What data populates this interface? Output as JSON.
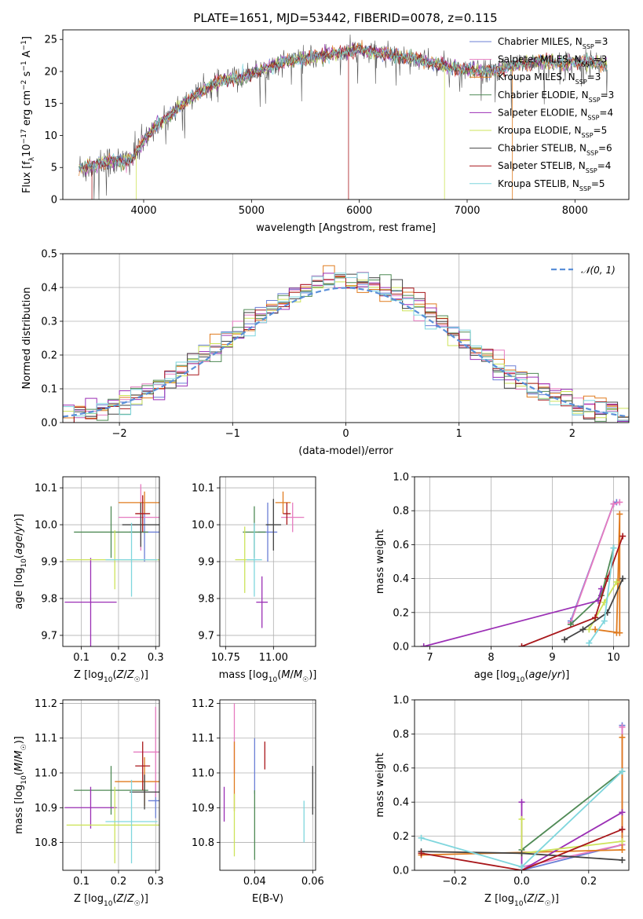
{
  "figure": {
    "title": "PLATE=1651, MJD=53442, FIBERID=0078, z=0.115"
  },
  "series_styles": [
    {
      "name": "Chabrier MILES",
      "nssp": "3",
      "color": "#6b7fd6"
    },
    {
      "name": "Salpeter MILES",
      "nssp": "3",
      "color": "#e67bc0"
    },
    {
      "name": "Kroupa MILES",
      "nssp": "3",
      "color": "#e07b1f"
    },
    {
      "name": "Chabrier ELODIE",
      "nssp": "3",
      "color": "#4f8a55"
    },
    {
      "name": "Salpeter ELODIE",
      "nssp": "4",
      "color": "#9b2fb5"
    },
    {
      "name": "Kroupa ELODIE",
      "nssp": "5",
      "color": "#cde35a"
    },
    {
      "name": "Chabrier STELIB",
      "nssp": "6",
      "color": "#444444"
    },
    {
      "name": "Salpeter STELIB",
      "nssp": "4",
      "color": "#a8171b"
    },
    {
      "name": "Kroupa STELIB",
      "nssp": "5",
      "color": "#7fd6dd"
    }
  ],
  "chart_data": [
    {
      "id": "spectrum",
      "type": "line",
      "xlabel": "wavelength [Angstrom, rest frame]",
      "ylabel": "Flux [f_λ 10^-17 erg cm^-2 s^-1 A^-1]",
      "xlim": [
        3250,
        8500
      ],
      "ylim": [
        0,
        26.5
      ],
      "xticks": [
        4000,
        5000,
        6000,
        7000,
        8000
      ],
      "yticks": [
        0,
        5,
        10,
        15,
        20,
        25
      ],
      "legend_position": "top-right",
      "envelope": {
        "x": [
          3400,
          3500,
          3600,
          3700,
          3800,
          3900,
          4000,
          4100,
          4200,
          4300,
          4400,
          4500,
          4600,
          4700,
          4800,
          4900,
          5000,
          5100,
          5200,
          5300,
          5400,
          5500,
          5600,
          5700,
          5800,
          5900,
          6000,
          6100,
          6200,
          6300,
          6400,
          6500,
          6600,
          6700,
          6800,
          6900,
          7000,
          7100,
          7200,
          7300,
          7400,
          7500,
          7600,
          7700,
          7800,
          7900,
          8000,
          8100,
          8200,
          8300
        ],
        "y": [
          4.8,
          5.2,
          5.6,
          6.0,
          5.8,
          6.5,
          9.0,
          11.5,
          12.5,
          14.0,
          15.5,
          16.5,
          17.5,
          18.5,
          18.8,
          19.0,
          19.8,
          20.2,
          21.0,
          21.5,
          21.8,
          22.0,
          22.3,
          22.6,
          22.8,
          23.0,
          23.5,
          23.0,
          22.8,
          22.6,
          22.3,
          22.0,
          21.7,
          21.2,
          20.8,
          20.5,
          20.3,
          20.0,
          19.9,
          20.3,
          20.8,
          21.2,
          21.5,
          21.6,
          21.4,
          21.2,
          21.5,
          21.6,
          21.3,
          21.0
        ]
      }
    },
    {
      "id": "residuals",
      "type": "histogram",
      "xlabel": "(data-model)/error",
      "ylabel": "Normed distribution",
      "xlim": [
        -2.5,
        2.5
      ],
      "ylim": [
        0,
        0.5
      ],
      "xticks": [
        -2,
        -1,
        0,
        1,
        2
      ],
      "yticks": [
        0.0,
        0.1,
        0.2,
        0.3,
        0.4,
        0.5
      ],
      "bins": 50,
      "reference_curve": {
        "name": "N(0,1)",
        "mean": 0,
        "sigma": 1,
        "style": "dashed"
      },
      "legend_position": "top-right"
    },
    {
      "id": "age_vs_Z",
      "type": "errorbar",
      "xlabel": "Z [log10(Z/Z☉)]",
      "ylabel": "age  [log10(age/yr)]",
      "xlim": [
        0.05,
        0.31
      ],
      "ylim": [
        9.67,
        10.13
      ],
      "xticks": [
        0.1,
        0.2,
        0.3
      ],
      "yticks": [
        9.7,
        9.8,
        9.9,
        10.0,
        10.1
      ],
      "points": [
        {
          "series": "Chabrier MILES",
          "x": 0.27,
          "y": 9.98,
          "xerr": 0.04,
          "yerr": 0.08
        },
        {
          "series": "Salpeter MILES",
          "x": 0.26,
          "y": 10.02,
          "xerr": 0.06,
          "yerr": 0.09
        },
        {
          "series": "Kroupa MILES",
          "x": 0.27,
          "y": 10.06,
          "xerr": 0.07,
          "yerr": 0.03
        },
        {
          "series": "Chabrier ELODIE",
          "x": 0.18,
          "y": 9.98,
          "xerr": 0.1,
          "yerr": 0.07
        },
        {
          "series": "Salpeter ELODIE",
          "x": 0.125,
          "y": 9.79,
          "xerr": 0.07,
          "yerr": 0.12
        },
        {
          "series": "Kroupa ELODIE",
          "x": 0.19,
          "y": 9.905,
          "xerr": 0.13,
          "yerr": 0.08
        },
        {
          "series": "Chabrier STELIB",
          "x": 0.26,
          "y": 10.0,
          "xerr": 0.05,
          "yerr": 0.06
        },
        {
          "series": "Salpeter STELIB",
          "x": 0.265,
          "y": 10.03,
          "xerr": 0.02,
          "yerr": 0.05
        },
        {
          "series": "Kroupa STELIB",
          "x": 0.235,
          "y": 9.905,
          "xerr": 0.07,
          "yerr": 0.1
        }
      ]
    },
    {
      "id": "age_vs_mass",
      "type": "errorbar",
      "xlabel": "mass [log10(M/M☉)]",
      "ylabel": "",
      "xlim": [
        10.72,
        11.22
      ],
      "ylim": [
        9.67,
        10.13
      ],
      "xticks": [
        10.75,
        11.0
      ],
      "yticks": [
        9.7,
        9.8,
        9.9,
        10.0,
        10.1
      ],
      "points": [
        {
          "series": "Chabrier MILES",
          "x": 10.97,
          "y": 9.98,
          "xerr": 0.05,
          "yerr": 0.08
        },
        {
          "series": "Salpeter MILES",
          "x": 11.1,
          "y": 10.02,
          "xerr": 0.06,
          "yerr": 0.04
        },
        {
          "series": "Kroupa MILES",
          "x": 11.05,
          "y": 10.06,
          "xerr": 0.04,
          "yerr": 0.03
        },
        {
          "series": "Chabrier ELODIE",
          "x": 10.9,
          "y": 9.98,
          "xerr": 0.06,
          "yerr": 0.07
        },
        {
          "series": "Salpeter ELODIE",
          "x": 10.94,
          "y": 9.79,
          "xerr": 0.03,
          "yerr": 0.07
        },
        {
          "series": "Kroupa ELODIE",
          "x": 10.85,
          "y": 9.905,
          "xerr": 0.05,
          "yerr": 0.09
        },
        {
          "series": "Chabrier STELIB",
          "x": 11.0,
          "y": 10.0,
          "xerr": 0.04,
          "yerr": 0.07
        },
        {
          "series": "Salpeter STELIB",
          "x": 11.07,
          "y": 10.03,
          "xerr": 0.02,
          "yerr": 0.03
        },
        {
          "series": "Kroupa STELIB",
          "x": 10.9,
          "y": 9.905,
          "xerr": 0.04,
          "yerr": 0.1
        }
      ]
    },
    {
      "id": "mass_weight_vs_age",
      "type": "line",
      "xlabel": "age  [log10(age/yr)]",
      "ylabel": "mass weight",
      "xlim": [
        6.75,
        10.25
      ],
      "ylim": [
        0.0,
        1.0
      ],
      "xticks": [
        7,
        8,
        9,
        10
      ],
      "yticks": [
        0.0,
        0.2,
        0.4,
        0.6,
        0.8,
        1.0
      ],
      "series": [
        {
          "name": "Chabrier MILES",
          "x": [
            9.3,
            10.0,
            10.05
          ],
          "y": [
            0.15,
            0.84,
            0.85
          ]
        },
        {
          "name": "Salpeter MILES",
          "x": [
            9.3,
            10.0,
            10.1
          ],
          "y": [
            0.14,
            0.84,
            0.85
          ]
        },
        {
          "name": "Kroupa MILES",
          "x": [
            9.7,
            10.1,
            10.1,
            10.05
          ],
          "y": [
            0.1,
            0.08,
            0.78,
            0.08
          ]
        },
        {
          "name": "Chabrier ELODIE",
          "x": [
            9.3,
            9.8,
            10.0
          ],
          "y": [
            0.13,
            0.3,
            0.58
          ]
        },
        {
          "name": "Salpeter ELODIE",
          "x": [
            6.9,
            9.75,
            9.8
          ],
          "y": [
            0.0,
            0.27,
            0.34
          ]
        },
        {
          "name": "Kroupa ELODIE",
          "x": [
            9.6,
            9.85,
            10.05
          ],
          "y": [
            0.1,
            0.26,
            0.38
          ]
        },
        {
          "name": "Chabrier STELIB",
          "x": [
            9.2,
            9.5,
            9.9,
            10.15
          ],
          "y": [
            0.04,
            0.1,
            0.2,
            0.4
          ]
        },
        {
          "name": "Salpeter STELIB",
          "x": [
            8.5,
            9.7,
            9.9,
            10.15
          ],
          "y": [
            0.0,
            0.17,
            0.4,
            0.65
          ]
        },
        {
          "name": "Kroupa STELIB",
          "x": [
            9.6,
            9.85,
            10.0
          ],
          "y": [
            0.02,
            0.15,
            0.58
          ]
        }
      ]
    },
    {
      "id": "mass_vs_Z",
      "type": "errorbar",
      "xlabel": "Z [log10(Z/Z☉)]",
      "ylabel": "mass [log10(M/M☉)]",
      "xlim": [
        0.05,
        0.31
      ],
      "ylim": [
        10.72,
        11.21
      ],
      "xticks": [
        0.1,
        0.2,
        0.3
      ],
      "yticks": [
        10.8,
        10.9,
        11.0,
        11.1,
        11.2
      ],
      "points": [
        {
          "series": "Chabrier MILES",
          "x": 0.3,
          "y": 10.92,
          "xerr": 0.02,
          "yerr": 0.05
        },
        {
          "series": "Salpeter MILES",
          "x": 0.3,
          "y": 11.06,
          "xerr": 0.06,
          "yerr": 0.13
        },
        {
          "series": "Kroupa MILES",
          "x": 0.27,
          "y": 10.975,
          "xerr": 0.08,
          "yerr": 0.07
        },
        {
          "series": "Chabrier ELODIE",
          "x": 0.18,
          "y": 10.95,
          "xerr": 0.1,
          "yerr": 0.07
        },
        {
          "series": "Salpeter ELODIE",
          "x": 0.125,
          "y": 10.9,
          "xerr": 0.07,
          "yerr": 0.06
        },
        {
          "series": "Kroupa ELODIE",
          "x": 0.19,
          "y": 10.85,
          "xerr": 0.13,
          "yerr": 0.11
        },
        {
          "series": "Chabrier STELIB",
          "x": 0.27,
          "y": 10.945,
          "xerr": 0.04,
          "yerr": 0.05
        },
        {
          "series": "Salpeter STELIB",
          "x": 0.265,
          "y": 11.02,
          "xerr": 0.02,
          "yerr": 0.07
        },
        {
          "series": "Kroupa STELIB",
          "x": 0.235,
          "y": 10.86,
          "xerr": 0.07,
          "yerr": 0.12
        }
      ]
    },
    {
      "id": "mass_vs_EBV",
      "type": "errorbar",
      "xlabel": "E(B-V)",
      "ylabel": "",
      "xlim": [
        0.028,
        0.061
      ],
      "ylim": [
        10.72,
        11.21
      ],
      "xticks": [
        0.04,
        0.06
      ],
      "yticks": [
        10.8,
        10.9,
        11.0,
        11.1,
        11.2
      ],
      "points": [
        {
          "series": "Chabrier MILES",
          "x": 0.04,
          "y": 11.02,
          "xerr": 0.0,
          "yerr": 0.08
        },
        {
          "series": "Salpeter MILES",
          "x": 0.033,
          "y": 11.1,
          "xerr": 0.0,
          "yerr": 0.1
        },
        {
          "series": "Kroupa MILES",
          "x": 0.033,
          "y": 10.99,
          "xerr": 0.0,
          "yerr": 0.1
        },
        {
          "series": "Chabrier ELODIE",
          "x": 0.04,
          "y": 10.85,
          "xerr": 0.0,
          "yerr": 0.1
        },
        {
          "series": "Salpeter ELODIE",
          "x": 0.0295,
          "y": 10.91,
          "xerr": 0.0,
          "yerr": 0.05
        },
        {
          "series": "Kroupa ELODIE",
          "x": 0.033,
          "y": 10.85,
          "xerr": 0.0,
          "yerr": 0.09
        },
        {
          "series": "Chabrier STELIB",
          "x": 0.06,
          "y": 10.95,
          "xerr": 0.0,
          "yerr": 0.07
        },
        {
          "series": "Salpeter STELIB",
          "x": 0.0435,
          "y": 11.05,
          "xerr": 0.0,
          "yerr": 0.04
        },
        {
          "series": "Kroupa STELIB",
          "x": 0.057,
          "y": 10.86,
          "xerr": 0.0,
          "yerr": 0.06
        }
      ]
    },
    {
      "id": "mass_weight_vs_Z",
      "type": "line",
      "xlabel": "Z [log10(Z/Z☉)]",
      "ylabel": "mass weight",
      "xlim": [
        -0.32,
        0.32
      ],
      "ylim": [
        0.0,
        1.0
      ],
      "xticks": [
        -0.2,
        0.0,
        0.2
      ],
      "yticks": [
        0.0,
        0.2,
        0.4,
        0.6,
        0.8,
        1.0
      ],
      "series": [
        {
          "name": "Chabrier MILES",
          "x": [
            0.0,
            0.3,
            0.3
          ],
          "y": [
            0.0,
            0.15,
            0.85
          ]
        },
        {
          "name": "Salpeter MILES",
          "x": [
            0.0,
            0.3,
            0.3
          ],
          "y": [
            0.02,
            0.15,
            0.84
          ]
        },
        {
          "name": "Kroupa MILES",
          "x": [
            -0.3,
            0.3,
            0.3
          ],
          "y": [
            0.09,
            0.12,
            0.78
          ]
        },
        {
          "name": "Chabrier ELODIE",
          "x": [
            0.0,
            0.3
          ],
          "y": [
            0.12,
            0.58
          ]
        },
        {
          "name": "Salpeter ELODIE",
          "x": [
            0.0,
            0.0,
            0.3
          ],
          "y": [
            0.4,
            0.0,
            0.34
          ]
        },
        {
          "name": "Kroupa ELODIE",
          "x": [
            0.0,
            0.0,
            0.3
          ],
          "y": [
            0.3,
            0.1,
            0.17
          ]
        },
        {
          "name": "Chabrier STELIB",
          "x": [
            -0.3,
            0.0,
            0.3
          ],
          "y": [
            0.11,
            0.1,
            0.06
          ]
        },
        {
          "name": "Salpeter STELIB",
          "x": [
            -0.3,
            0.0,
            0.3
          ],
          "y": [
            0.1,
            0.0,
            0.24
          ]
        },
        {
          "name": "Kroupa STELIB",
          "x": [
            -0.3,
            0.0,
            0.3
          ],
          "y": [
            0.19,
            0.02,
            0.58
          ]
        }
      ]
    }
  ]
}
